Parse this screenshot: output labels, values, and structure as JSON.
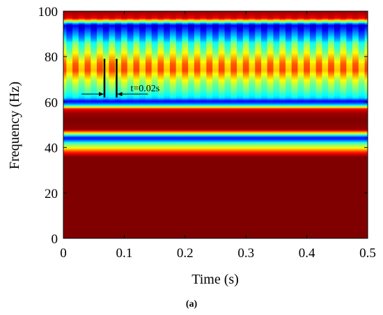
{
  "chart_data": {
    "type": "heatmap",
    "title": "",
    "xlabel": "Time (s)",
    "ylabel": "Frequency (Hz)",
    "xlim": [
      0,
      0.5
    ],
    "ylim": [
      0,
      100
    ],
    "x_ticks": [
      0,
      0.1,
      0.2,
      0.3,
      0.4,
      0.5
    ],
    "x_tick_labels": [
      "0",
      "0.1",
      "0.2",
      "0.3",
      "0.4",
      "0.5"
    ],
    "y_ticks": [
      0,
      20,
      40,
      60,
      80,
      100
    ],
    "y_tick_labels": [
      "0",
      "20",
      "40",
      "60",
      "80",
      "100"
    ],
    "colormap": "jet",
    "grid": false,
    "frequency_profile": [
      {
        "f": 0,
        "level": 1.0
      },
      {
        "f": 36,
        "level": 1.0
      },
      {
        "f": 38,
        "level": 0.85
      },
      {
        "f": 40,
        "level": 0.62
      },
      {
        "f": 42,
        "level": 0.45
      },
      {
        "f": 43.5,
        "level": 0.2
      },
      {
        "f": 44.5,
        "level": 0.12
      },
      {
        "f": 46,
        "level": 0.5
      },
      {
        "f": 48,
        "level": 0.98
      },
      {
        "f": 52,
        "level": 1.0
      },
      {
        "f": 55,
        "level": 0.98
      },
      {
        "f": 57,
        "level": 0.9
      },
      {
        "f": 59,
        "level": 0.3
      },
      {
        "f": 60.5,
        "level": 0.1
      },
      {
        "f": 62,
        "level": 0.35
      },
      {
        "f": 65,
        "level": 0.45
      },
      {
        "f": 68,
        "level": 0.52
      },
      {
        "f": 71,
        "level": 0.62
      },
      {
        "f": 74,
        "level": 0.75
      },
      {
        "f": 77,
        "level": 0.72
      },
      {
        "f": 80,
        "level": 0.62
      },
      {
        "f": 83,
        "level": 0.52
      },
      {
        "f": 86,
        "level": 0.45
      },
      {
        "f": 88,
        "level": 0.32
      },
      {
        "f": 91,
        "level": 0.2
      },
      {
        "f": 94,
        "level": 0.08
      },
      {
        "f": 97,
        "level": 0.9
      },
      {
        "f": 100,
        "level": 0.97
      }
    ],
    "modulation": {
      "period_s": 0.02,
      "affected_band_hz": [
        60,
        100
      ],
      "amplitude": 0.1
    },
    "annotations": [
      {
        "text": "t=0.02s",
        "t_start": 0.0675,
        "t_end": 0.0875,
        "f_low": 62,
        "f_high": 79,
        "arrow_f": 63.5
      }
    ],
    "panel_label": "(a)"
  }
}
